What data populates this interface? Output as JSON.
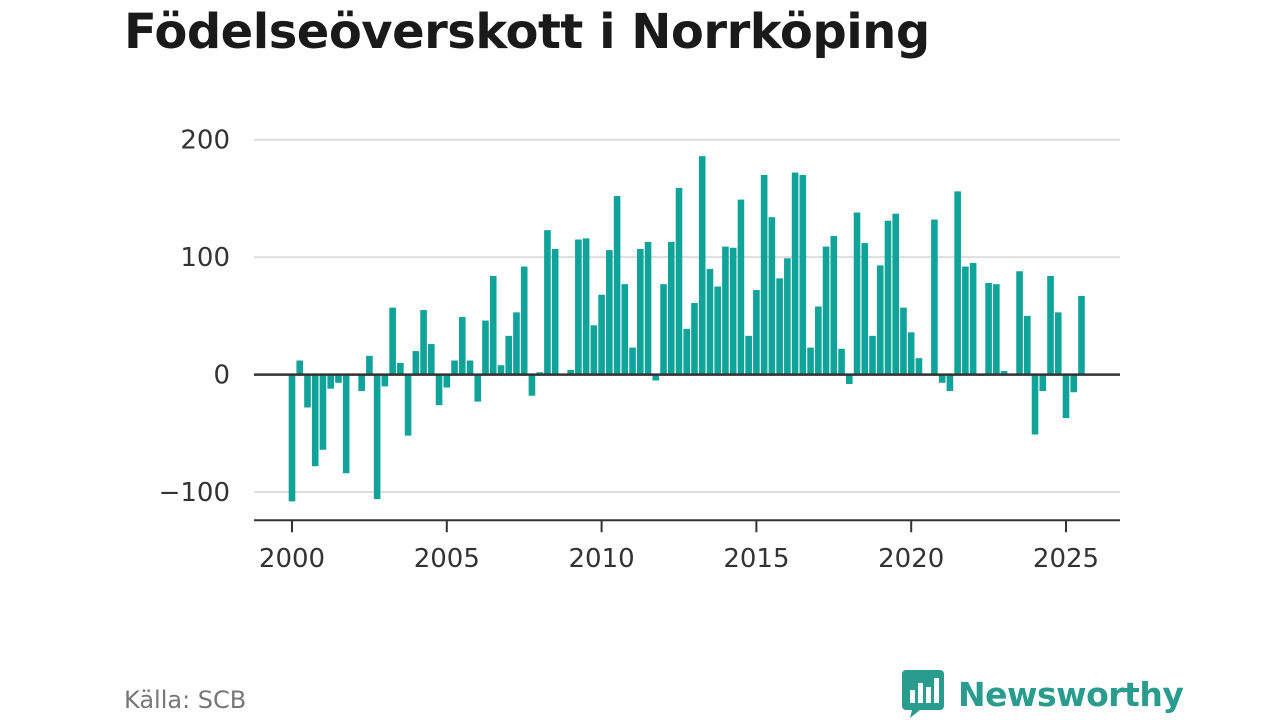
{
  "title": "Födelseöverskott i Norrköping",
  "source": "Källa: SCB",
  "brand": "Newsworthy",
  "colors": {
    "bar": "#0fa39a",
    "grid": "#dddddd",
    "zero_line": "#333333",
    "brand": "#2a9c8d"
  },
  "icons": {
    "brand_logo": "speech-bubble-bar-chart-icon"
  },
  "chart_data": {
    "type": "bar",
    "title": "Födelseöverskott i Norrköping",
    "xlabel": "",
    "ylabel": "",
    "xlim": [
      1999.2,
      2027.1
    ],
    "ylim": [
      -124,
      200
    ],
    "grid": true,
    "x_ticks": [
      2000,
      2005,
      2010,
      2015,
      2020,
      2025
    ],
    "x_tick_labels": [
      "2000",
      "2005",
      "2010",
      "2015",
      "2020",
      "2025"
    ],
    "y_ticks": [
      -100,
      0,
      100,
      200
    ],
    "y_tick_labels": [
      "−100",
      "0",
      "100",
      "200"
    ],
    "x_start": 2000,
    "x_step": 0.25,
    "values": [
      -108,
      12,
      -28,
      -78,
      -64,
      -12,
      -7,
      -84,
      0,
      -14,
      16,
      -106,
      -10,
      57,
      10,
      -52,
      20,
      55,
      26,
      -26,
      -11,
      12,
      49,
      12,
      -23,
      46,
      84,
      8,
      33,
      53,
      92,
      -18,
      2,
      123,
      107,
      0,
      4,
      115,
      116,
      42,
      68,
      106,
      152,
      77,
      23,
      107,
      113,
      -5,
      77,
      113,
      159,
      39,
      61,
      186,
      90,
      75,
      109,
      108,
      149,
      33,
      72,
      170,
      134,
      82,
      99,
      172,
      170,
      23,
      58,
      109,
      118,
      22,
      -8,
      138,
      112,
      33,
      93,
      131,
      137,
      57,
      36,
      14,
      0,
      132,
      -7,
      -14,
      156,
      92,
      95,
      -1,
      78,
      77,
      3,
      0,
      88,
      50,
      -51,
      -14,
      84,
      53,
      -37,
      -15,
      67
    ]
  }
}
